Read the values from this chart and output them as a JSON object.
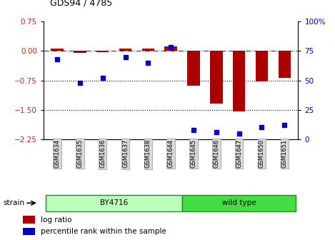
{
  "title": "GDS94 / 4785",
  "samples": [
    "GSM1634",
    "GSM1635",
    "GSM1636",
    "GSM1637",
    "GSM1638",
    "GSM1644",
    "GSM1645",
    "GSM1646",
    "GSM1647",
    "GSM1650",
    "GSM1651"
  ],
  "log_ratio": [
    0.07,
    -0.05,
    -0.03,
    0.07,
    0.07,
    0.12,
    -0.88,
    -1.35,
    -1.55,
    -0.78,
    -0.68
  ],
  "percentile_rank": [
    68,
    48,
    52,
    70,
    65,
    78,
    8,
    6,
    5,
    10,
    12
  ],
  "strain_groups": [
    {
      "label": "BY4716",
      "start": 0,
      "end": 5,
      "color": "#bbffbb"
    },
    {
      "label": "wild type",
      "start": 6,
      "end": 10,
      "color": "#44dd44"
    }
  ],
  "ylim_left": [
    -2.25,
    0.75
  ],
  "ylim_right": [
    0,
    100
  ],
  "left_ticks": [
    0.75,
    0,
    -0.75,
    -1.5,
    -2.25
  ],
  "right_ticks": [
    100,
    75,
    50,
    25,
    0
  ],
  "right_tick_labels": [
    "100%",
    "75",
    "50",
    "25",
    "0"
  ],
  "dotted_lines": [
    -0.75,
    -1.5
  ],
  "bar_color": "#aa0000",
  "point_color": "#0000cc",
  "left_tick_color": "#cc2222",
  "right_tick_color": "#0000cc",
  "strain_label": "strain",
  "legend1": "log ratio",
  "legend2": "percentile rank within the sample",
  "bg_color": "#ffffff"
}
